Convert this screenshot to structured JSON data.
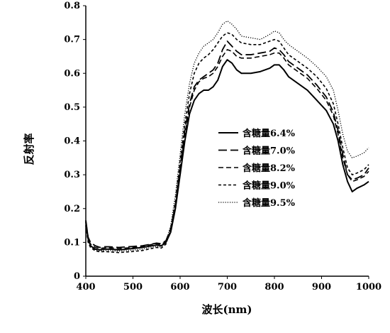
{
  "chart_data": {
    "type": "line",
    "title": "",
    "xlabel": "波长(nm)",
    "ylabel": "反射率",
    "xlim": [
      400,
      1000
    ],
    "ylim": [
      0,
      0.8
    ],
    "xticks": [
      400,
      500,
      600,
      700,
      800,
      900,
      1000
    ],
    "yticks": [
      0,
      0.1,
      0.2,
      0.3,
      0.4,
      0.5,
      0.6,
      0.7,
      0.8
    ],
    "grid": false,
    "legend_position": "center-right",
    "series": [
      {
        "name": "含糖量6.4%",
        "style": "solid",
        "color": "#000000",
        "points": [
          [
            400,
            0.165
          ],
          [
            405,
            0.11
          ],
          [
            410,
            0.09
          ],
          [
            420,
            0.08
          ],
          [
            430,
            0.078
          ],
          [
            440,
            0.08
          ],
          [
            450,
            0.08
          ],
          [
            470,
            0.078
          ],
          [
            500,
            0.082
          ],
          [
            520,
            0.085
          ],
          [
            540,
            0.09
          ],
          [
            550,
            0.092
          ],
          [
            560,
            0.09
          ],
          [
            570,
            0.1
          ],
          [
            580,
            0.13
          ],
          [
            590,
            0.2
          ],
          [
            600,
            0.3
          ],
          [
            610,
            0.4
          ],
          [
            620,
            0.48
          ],
          [
            630,
            0.52
          ],
          [
            640,
            0.54
          ],
          [
            650,
            0.55
          ],
          [
            660,
            0.55
          ],
          [
            670,
            0.56
          ],
          [
            680,
            0.58
          ],
          [
            690,
            0.62
          ],
          [
            700,
            0.64
          ],
          [
            710,
            0.63
          ],
          [
            720,
            0.61
          ],
          [
            730,
            0.6
          ],
          [
            750,
            0.6
          ],
          [
            770,
            0.605
          ],
          [
            790,
            0.615
          ],
          [
            800,
            0.625
          ],
          [
            810,
            0.625
          ],
          [
            820,
            0.61
          ],
          [
            830,
            0.59
          ],
          [
            850,
            0.57
          ],
          [
            870,
            0.55
          ],
          [
            890,
            0.52
          ],
          [
            910,
            0.49
          ],
          [
            925,
            0.45
          ],
          [
            935,
            0.4
          ],
          [
            945,
            0.33
          ],
          [
            955,
            0.28
          ],
          [
            965,
            0.25
          ],
          [
            975,
            0.26
          ],
          [
            990,
            0.27
          ],
          [
            1000,
            0.28
          ]
        ]
      },
      {
        "name": "含糖量7.0%",
        "style": "long-dash",
        "color": "#000000",
        "points": [
          [
            400,
            0.16
          ],
          [
            405,
            0.115
          ],
          [
            410,
            0.1
          ],
          [
            420,
            0.09
          ],
          [
            430,
            0.085
          ],
          [
            440,
            0.087
          ],
          [
            450,
            0.087
          ],
          [
            470,
            0.085
          ],
          [
            500,
            0.088
          ],
          [
            520,
            0.09
          ],
          [
            540,
            0.095
          ],
          [
            550,
            0.098
          ],
          [
            560,
            0.096
          ],
          [
            570,
            0.105
          ],
          [
            580,
            0.14
          ],
          [
            590,
            0.21
          ],
          [
            600,
            0.32
          ],
          [
            610,
            0.43
          ],
          [
            620,
            0.51
          ],
          [
            630,
            0.56
          ],
          [
            640,
            0.58
          ],
          [
            650,
            0.59
          ],
          [
            660,
            0.6
          ],
          [
            670,
            0.61
          ],
          [
            680,
            0.63
          ],
          [
            690,
            0.67
          ],
          [
            700,
            0.695
          ],
          [
            710,
            0.68
          ],
          [
            720,
            0.665
          ],
          [
            730,
            0.655
          ],
          [
            750,
            0.655
          ],
          [
            770,
            0.66
          ],
          [
            790,
            0.665
          ],
          [
            800,
            0.675
          ],
          [
            810,
            0.67
          ],
          [
            820,
            0.655
          ],
          [
            830,
            0.635
          ],
          [
            850,
            0.615
          ],
          [
            870,
            0.595
          ],
          [
            890,
            0.565
          ],
          [
            910,
            0.53
          ],
          [
            925,
            0.485
          ],
          [
            935,
            0.43
          ],
          [
            945,
            0.36
          ],
          [
            955,
            0.3
          ],
          [
            965,
            0.285
          ],
          [
            975,
            0.29
          ],
          [
            990,
            0.3
          ],
          [
            1000,
            0.32
          ]
        ]
      },
      {
        "name": "含糖量8.2%",
        "style": "dash",
        "color": "#000000",
        "points": [
          [
            400,
            0.15
          ],
          [
            405,
            0.11
          ],
          [
            410,
            0.095
          ],
          [
            420,
            0.085
          ],
          [
            430,
            0.082
          ],
          [
            440,
            0.084
          ],
          [
            450,
            0.084
          ],
          [
            470,
            0.082
          ],
          [
            500,
            0.085
          ],
          [
            520,
            0.088
          ],
          [
            540,
            0.094
          ],
          [
            550,
            0.096
          ],
          [
            560,
            0.094
          ],
          [
            570,
            0.103
          ],
          [
            580,
            0.135
          ],
          [
            590,
            0.205
          ],
          [
            600,
            0.31
          ],
          [
            610,
            0.42
          ],
          [
            620,
            0.5
          ],
          [
            630,
            0.55
          ],
          [
            640,
            0.575
          ],
          [
            650,
            0.585
          ],
          [
            660,
            0.59
          ],
          [
            670,
            0.6
          ],
          [
            680,
            0.62
          ],
          [
            690,
            0.65
          ],
          [
            700,
            0.67
          ],
          [
            710,
            0.665
          ],
          [
            720,
            0.65
          ],
          [
            730,
            0.645
          ],
          [
            750,
            0.645
          ],
          [
            770,
            0.65
          ],
          [
            790,
            0.655
          ],
          [
            800,
            0.66
          ],
          [
            810,
            0.66
          ],
          [
            820,
            0.645
          ],
          [
            830,
            0.625
          ],
          [
            850,
            0.605
          ],
          [
            870,
            0.585
          ],
          [
            890,
            0.555
          ],
          [
            910,
            0.52
          ],
          [
            925,
            0.475
          ],
          [
            935,
            0.42
          ],
          [
            945,
            0.35
          ],
          [
            955,
            0.3
          ],
          [
            965,
            0.28
          ],
          [
            975,
            0.285
          ],
          [
            990,
            0.295
          ],
          [
            1000,
            0.31
          ]
        ]
      },
      {
        "name": "含糖量9.0%",
        "style": "short-dash",
        "color": "#000000",
        "points": [
          [
            400,
            0.15
          ],
          [
            405,
            0.1
          ],
          [
            410,
            0.085
          ],
          [
            420,
            0.075
          ],
          [
            430,
            0.072
          ],
          [
            440,
            0.073
          ],
          [
            450,
            0.072
          ],
          [
            470,
            0.07
          ],
          [
            500,
            0.073
          ],
          [
            520,
            0.076
          ],
          [
            540,
            0.082
          ],
          [
            550,
            0.085
          ],
          [
            560,
            0.083
          ],
          [
            570,
            0.095
          ],
          [
            580,
            0.14
          ],
          [
            590,
            0.22
          ],
          [
            600,
            0.34
          ],
          [
            610,
            0.45
          ],
          [
            620,
            0.54
          ],
          [
            630,
            0.6
          ],
          [
            640,
            0.63
          ],
          [
            650,
            0.645
          ],
          [
            660,
            0.655
          ],
          [
            670,
            0.67
          ],
          [
            680,
            0.69
          ],
          [
            690,
            0.71
          ],
          [
            700,
            0.72
          ],
          [
            710,
            0.715
          ],
          [
            720,
            0.7
          ],
          [
            730,
            0.69
          ],
          [
            750,
            0.685
          ],
          [
            770,
            0.685
          ],
          [
            790,
            0.695
          ],
          [
            800,
            0.7
          ],
          [
            810,
            0.695
          ],
          [
            820,
            0.675
          ],
          [
            830,
            0.655
          ],
          [
            850,
            0.635
          ],
          [
            870,
            0.615
          ],
          [
            890,
            0.59
          ],
          [
            910,
            0.555
          ],
          [
            925,
            0.51
          ],
          [
            935,
            0.45
          ],
          [
            945,
            0.38
          ],
          [
            955,
            0.32
          ],
          [
            965,
            0.3
          ],
          [
            975,
            0.305
          ],
          [
            990,
            0.315
          ],
          [
            1000,
            0.33
          ]
        ]
      },
      {
        "name": "含糖量9.5%",
        "style": "dotted",
        "color": "#000000",
        "points": [
          [
            400,
            0.16
          ],
          [
            405,
            0.11
          ],
          [
            410,
            0.09
          ],
          [
            420,
            0.078
          ],
          [
            430,
            0.075
          ],
          [
            440,
            0.076
          ],
          [
            450,
            0.076
          ],
          [
            470,
            0.074
          ],
          [
            500,
            0.077
          ],
          [
            520,
            0.08
          ],
          [
            540,
            0.086
          ],
          [
            550,
            0.088
          ],
          [
            560,
            0.086
          ],
          [
            570,
            0.1
          ],
          [
            580,
            0.15
          ],
          [
            590,
            0.24
          ],
          [
            600,
            0.36
          ],
          [
            610,
            0.48
          ],
          [
            620,
            0.57
          ],
          [
            630,
            0.63
          ],
          [
            640,
            0.66
          ],
          [
            650,
            0.68
          ],
          [
            660,
            0.69
          ],
          [
            670,
            0.7
          ],
          [
            680,
            0.72
          ],
          [
            690,
            0.745
          ],
          [
            700,
            0.755
          ],
          [
            710,
            0.745
          ],
          [
            720,
            0.73
          ],
          [
            730,
            0.71
          ],
          [
            750,
            0.705
          ],
          [
            770,
            0.7
          ],
          [
            790,
            0.715
          ],
          [
            800,
            0.725
          ],
          [
            810,
            0.72
          ],
          [
            820,
            0.7
          ],
          [
            830,
            0.685
          ],
          [
            850,
            0.665
          ],
          [
            870,
            0.645
          ],
          [
            890,
            0.62
          ],
          [
            910,
            0.59
          ],
          [
            925,
            0.55
          ],
          [
            935,
            0.49
          ],
          [
            945,
            0.42
          ],
          [
            955,
            0.37
          ],
          [
            965,
            0.35
          ],
          [
            975,
            0.355
          ],
          [
            990,
            0.365
          ],
          [
            1000,
            0.38
          ]
        ]
      }
    ]
  }
}
